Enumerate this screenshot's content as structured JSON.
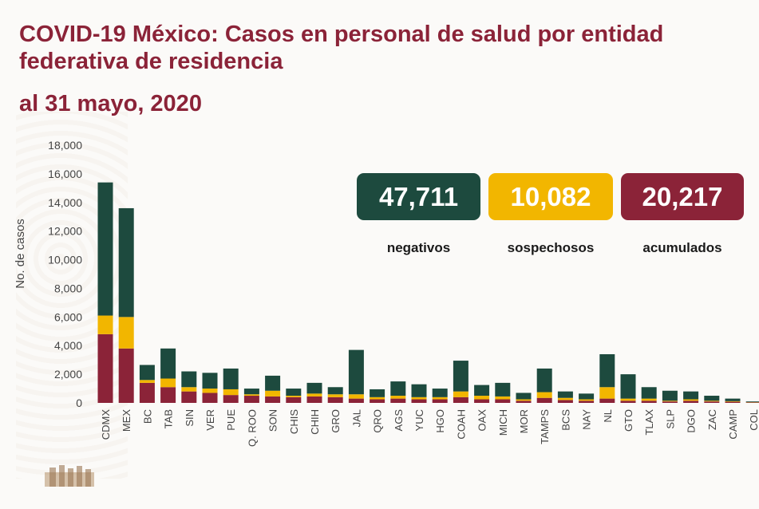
{
  "header": {
    "title": "COVID-19 México: Casos en personal de salud por entidad federativa de residencia",
    "subtitle": "al 31 mayo, 2020"
  },
  "stats": [
    {
      "value": "47,711",
      "label": "negativos",
      "color": "#1d4a3e"
    },
    {
      "value": "10,082",
      "label": "sospechosos",
      "color": "#f2b600"
    },
    {
      "value": "20,217",
      "label": "acumulados",
      "color": "#8b2338"
    }
  ],
  "colors": {
    "acumulados": "#8b2338",
    "sospechosos": "#f2b600",
    "negativos": "#1d4a3e",
    "title": "#8b2338"
  },
  "chart_data": {
    "type": "bar",
    "stacked": true,
    "ylabel": "No. de casos",
    "ylim": [
      0,
      18000
    ],
    "yticks": [
      "18,000",
      "16,000",
      "14,000",
      "12,000",
      "10,000",
      "8,000",
      "6,000",
      "4,000",
      "2,000",
      "0"
    ],
    "categories": [
      "CDMX",
      "MEX",
      "BC",
      "TAB",
      "SIN",
      "VER",
      "PUE",
      "Q. ROO",
      "SON",
      "CHIS",
      "CHIH",
      "GRO",
      "JAL",
      "QRO",
      "AGS",
      "YUC",
      "HGO",
      "COAH",
      "OAX",
      "MICH",
      "MOR",
      "TAMPS",
      "BCS",
      "NAY",
      "NL",
      "GTO",
      "TLAX",
      "SLP",
      "DGO",
      "ZAC",
      "CAMP",
      "COL"
    ],
    "series": [
      {
        "name": "acumulados",
        "values": [
          4800,
          3800,
          1400,
          1100,
          800,
          700,
          550,
          500,
          450,
          400,
          450,
          400,
          300,
          250,
          300,
          250,
          250,
          400,
          250,
          250,
          150,
          350,
          200,
          150,
          300,
          150,
          150,
          100,
          150,
          100,
          80,
          30
        ]
      },
      {
        "name": "sospechosos",
        "values": [
          1300,
          2200,
          200,
          600,
          300,
          300,
          400,
          100,
          400,
          100,
          200,
          200,
          300,
          150,
          200,
          150,
          150,
          400,
          250,
          200,
          100,
          400,
          150,
          100,
          800,
          150,
          150,
          50,
          100,
          50,
          40,
          20
        ]
      },
      {
        "name": "negativos",
        "values": [
          9300,
          7600,
          1050,
          2100,
          1100,
          1100,
          1450,
          400,
          1050,
          500,
          750,
          500,
          3100,
          550,
          1000,
          900,
          600,
          2150,
          750,
          950,
          450,
          1650,
          450,
          400,
          2300,
          1700,
          800,
          700,
          550,
          350,
          180,
          50
        ]
      }
    ]
  }
}
